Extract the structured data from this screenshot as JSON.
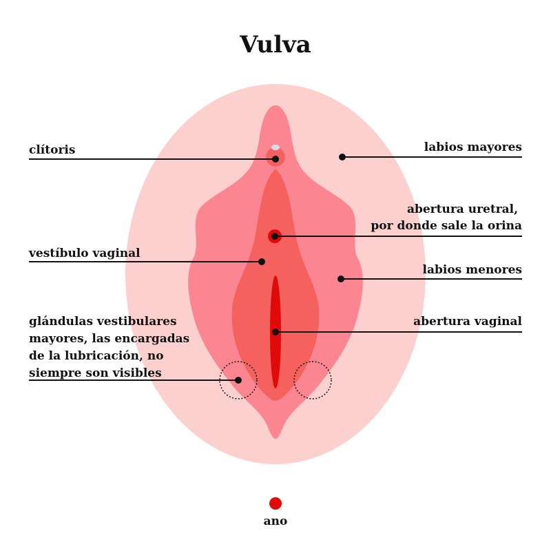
{
  "title": "Vulva",
  "labels": {
    "clitoris": "clítoris",
    "labios_mayores": "labios mayores",
    "abertura_uretral": [
      "abertura uretral,",
      "por donde sale la orina"
    ],
    "vestibulo": "vestíbulo vaginal",
    "labios_menores": "labios menores",
    "glandulas": [
      "glándulas vestibulares",
      "mayores, las encargadas",
      "de la lubricación, no",
      "siempre son visibles"
    ],
    "abertura_vaginal": "abertura vaginal",
    "ano": "ano"
  },
  "colors": {
    "outer_labia": "#fdd0d0",
    "inner_labia": "#fb8590",
    "vestibule": "#f4615e",
    "opening": "#e00a0a",
    "clitoris_tip": "#d6dce6",
    "leader": "#111111"
  }
}
